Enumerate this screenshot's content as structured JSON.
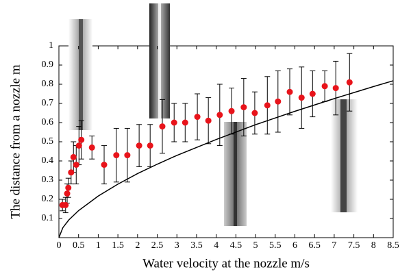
{
  "chart_data": {
    "type": "scatter",
    "x_label": "Water velocity at the nozzle  m/s",
    "y_label": "The distance from a nozzle   m",
    "xlim": [
      0,
      8.5
    ],
    "ylim": [
      0,
      1
    ],
    "xticks": [
      0,
      0.5,
      1,
      1.5,
      2,
      2.5,
      3,
      3.5,
      4,
      4.5,
      5,
      5.5,
      6,
      6.5,
      7,
      7.5,
      8,
      8.5
    ],
    "yticks": [
      0.1,
      0.2,
      0.3,
      0.4,
      0.5,
      0.6,
      0.7,
      0.8,
      0.9,
      1
    ],
    "series": [
      {
        "color": "#e8141b",
        "x": [
          0.09,
          0.17,
          0.21,
          0.24,
          0.31,
          0.37,
          0.44,
          0.51,
          0.57,
          0.84,
          1.15,
          1.46,
          1.74,
          2.04,
          2.32,
          2.63,
          2.93,
          3.21,
          3.52,
          3.8,
          4.09,
          4.39,
          4.7,
          4.98,
          5.3,
          5.57,
          5.87,
          6.17,
          6.45,
          6.76,
          7.04,
          7.39
        ],
        "values": [
          0.17,
          0.17,
          0.23,
          0.26,
          0.34,
          0.42,
          0.38,
          0.48,
          0.51,
          0.47,
          0.38,
          0.43,
          0.43,
          0.48,
          0.48,
          0.58,
          0.6,
          0.6,
          0.63,
          0.61,
          0.64,
          0.66,
          0.68,
          0.65,
          0.69,
          0.71,
          0.76,
          0.73,
          0.75,
          0.79,
          0.78,
          0.81
        ],
        "errors": [
          0.03,
          0.04,
          0.05,
          0.05,
          0.06,
          0.08,
          0.1,
          0.1,
          0.1,
          0.06,
          0.1,
          0.14,
          0.14,
          0.11,
          0.11,
          0.14,
          0.1,
          0.1,
          0.12,
          0.12,
          0.16,
          0.12,
          0.15,
          0.11,
          0.15,
          0.16,
          0.12,
          0.16,
          0.12,
          0.08,
          0.14,
          0.15
        ]
      },
      {
        "color": "#000000",
        "x": [
          0,
          0.1,
          0.25,
          0.5,
          1,
          1.5,
          2,
          2.5,
          3,
          4,
          5,
          6,
          7,
          8,
          8.5
        ],
        "values": [
          0,
          0.052,
          0.092,
          0.141,
          0.217,
          0.279,
          0.334,
          0.383,
          0.429,
          0.512,
          0.589,
          0.659,
          0.725,
          0.788,
          0.818
        ]
      }
    ]
  }
}
